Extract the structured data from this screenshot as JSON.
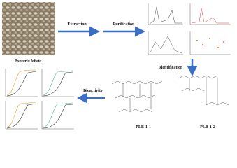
{
  "source": {
    "label": "Pueraria lobata"
  },
  "steps": [
    "Extraction",
    "Purification",
    "Identification",
    "Bioactivity"
  ],
  "structures": [
    "PLB-1-1",
    "PLB-1-2"
  ]
}
